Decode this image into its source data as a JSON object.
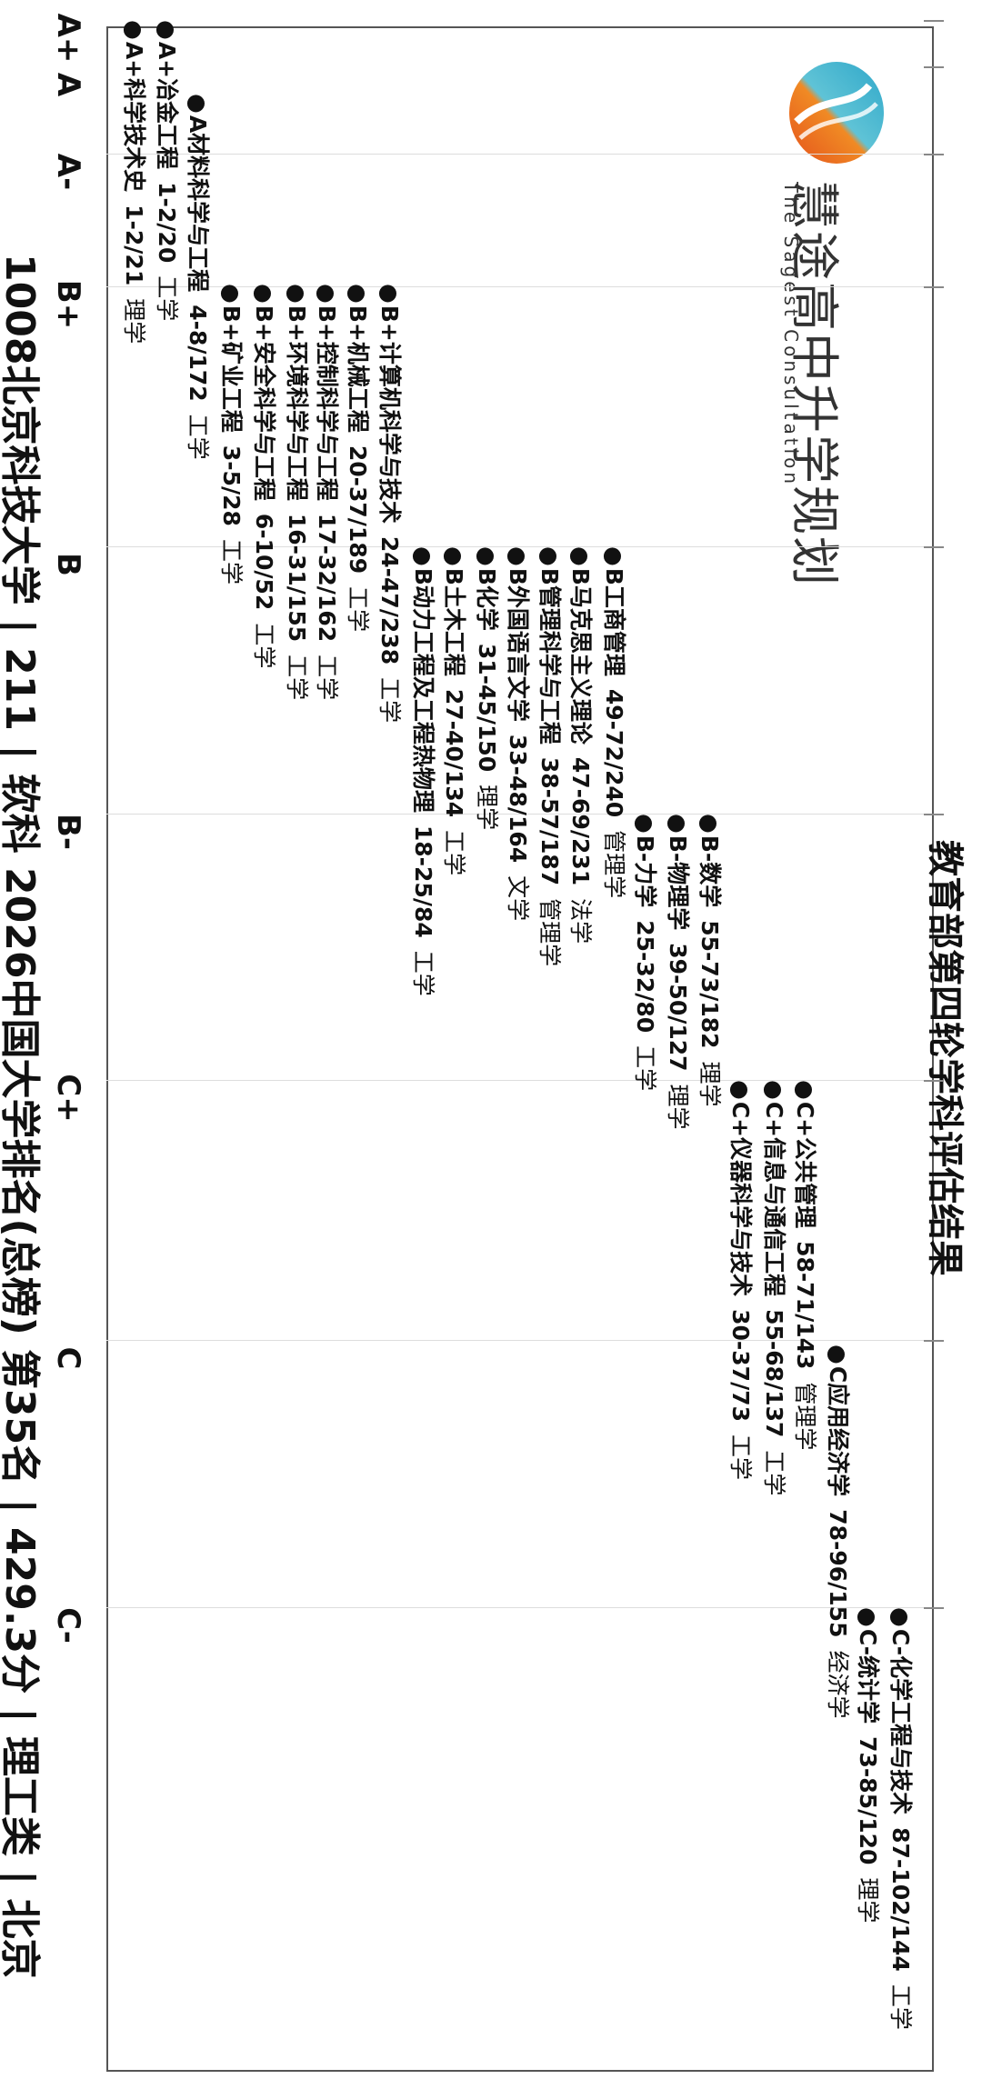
{
  "header": {
    "title": "教育部第四轮学科评估结果",
    "logo_name": "慧途高中升学规划",
    "logo_subtitle": "The Sagest Consultation"
  },
  "grades": [
    "A+",
    "A",
    "A-",
    "B+",
    "B",
    "B-",
    "C+",
    "C",
    "C-"
  ],
  "entries": [
    {
      "label": "A+冶金工程",
      "rank": "1-2/20",
      "field": "工学"
    },
    {
      "label": "A+科学技术史",
      "rank": "1-2/21",
      "field": "理学"
    },
    {
      "label": "A材料科学与工程",
      "rank": "4-8/172",
      "field": "工学"
    },
    {
      "label": "B+计算机科学与技术",
      "rank": "24-47/238",
      "field": "工学"
    },
    {
      "label": "B+机械工程",
      "rank": "20-37/189",
      "field": "工学"
    },
    {
      "label": "B+控制科学与工程",
      "rank": "17-32/162",
      "field": "工学"
    },
    {
      "label": "B+环境科学与工程",
      "rank": "16-31/155",
      "field": "工学"
    },
    {
      "label": "B+安全科学与工程",
      "rank": "6-10/52",
      "field": "工学"
    },
    {
      "label": "B+矿业工程",
      "rank": "3-5/28",
      "field": "工学"
    },
    {
      "label": "B工商管理",
      "rank": "49-72/240",
      "field": "管理学"
    },
    {
      "label": "B马克思主义理论",
      "rank": "47-69/231",
      "field": "法学"
    },
    {
      "label": "B管理科学与工程",
      "rank": "38-57/187",
      "field": "管理学"
    },
    {
      "label": "B外国语言文学",
      "rank": "33-48/164",
      "field": "文学"
    },
    {
      "label": "B化学",
      "rank": "31-45/150",
      "field": "理学"
    },
    {
      "label": "B土木工程",
      "rank": "27-40/134",
      "field": "工学"
    },
    {
      "label": "B动力工程及工程热物理",
      "rank": "18-25/84",
      "field": "工学"
    },
    {
      "label": "B-数学",
      "rank": "55-73/182",
      "field": "理学"
    },
    {
      "label": "B-物理学",
      "rank": "39-50/127",
      "field": "理学"
    },
    {
      "label": "B-力学",
      "rank": "25-32/80",
      "field": "工学"
    },
    {
      "label": "C+公共管理",
      "rank": "58-71/143",
      "field": "管理学"
    },
    {
      "label": "C+信息与通信工程",
      "rank": "55-68/137",
      "field": "工学"
    },
    {
      "label": "C+仪器科学与技术",
      "rank": "30-37/73",
      "field": "工学"
    },
    {
      "label": "C应用经济学",
      "rank": "78-96/155",
      "field": "经济学"
    },
    {
      "label": "C-化学工程与技术",
      "rank": "87-102/144",
      "field": "工学"
    },
    {
      "label": "C-统计学",
      "rank": "73-85/120",
      "field": "理学"
    }
  ],
  "footer": "1008北京科技大学 | 211 | 软科 2026中国大学排名(总榜) 第35名 | 429.3分 | 理工类 | 北京"
}
